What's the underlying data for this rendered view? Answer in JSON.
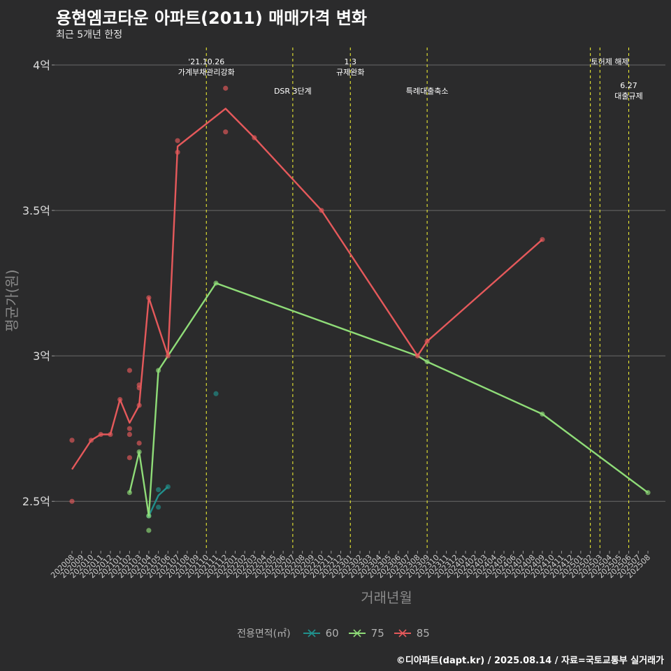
{
  "title": "용현엠코타운 아파트(2011) 매매가격 변화",
  "subtitle": "최근 5개년 한정",
  "credit": "©디아파트(dapt.kr) / 2025.08.14 / 자료=국토교통부 실거래가",
  "legend": {
    "title": "전용면적(㎡)",
    "items": [
      {
        "label": "60",
        "color": "#21908c"
      },
      {
        "label": "75",
        "color": "#8fdc78"
      },
      {
        "label": "85",
        "color": "#e5595b"
      }
    ]
  },
  "chart_data": {
    "type": "line",
    "xlabel": "거래년월",
    "ylabel": "평균가(원)",
    "categories": [
      "202008",
      "202009",
      "202010",
      "202011",
      "202012",
      "202101",
      "202102",
      "202103",
      "202104",
      "202105",
      "202106",
      "202107",
      "202108",
      "202109",
      "202110",
      "202111",
      "202112",
      "202201",
      "202202",
      "202203",
      "202204",
      "202205",
      "202206",
      "202207",
      "202208",
      "202209",
      "202210",
      "202211",
      "202212",
      "202301",
      "202302",
      "202303",
      "202304",
      "202305",
      "202306",
      "202307",
      "202308",
      "202309",
      "202310",
      "202311",
      "202312",
      "202401",
      "202402",
      "202403",
      "202404",
      "202405",
      "202406",
      "202407",
      "202408",
      "202409",
      "202410",
      "202411",
      "202412",
      "202501",
      "202502",
      "202503",
      "202504",
      "202505",
      "202506",
      "202507",
      "202508"
    ],
    "ylim": [
      23300,
      40600
    ],
    "yticks": [
      {
        "value": 25000,
        "label": "2.5억"
      },
      {
        "value": 30000,
        "label": "3억"
      },
      {
        "value": 35000,
        "label": "3.5억"
      },
      {
        "value": 40000,
        "label": "4억"
      }
    ],
    "series": [
      {
        "name": "60",
        "color": "#21908c",
        "line": [
          [
            "202104",
            24500
          ],
          [
            "202105",
            25200
          ],
          [
            "202106",
            25500
          ]
        ],
        "points": [
          [
            "202104",
            24500
          ],
          [
            "202105",
            25400
          ],
          [
            "202105",
            24800
          ],
          [
            "202106",
            25500
          ],
          [
            "202111",
            28700
          ]
        ]
      },
      {
        "name": "75",
        "color": "#8fdc78",
        "line": [
          [
            "202102",
            25300
          ],
          [
            "202103",
            26700
          ],
          [
            "202104",
            24500
          ],
          [
            "202105",
            29500
          ],
          [
            "202106",
            30000
          ],
          [
            "202111",
            32500
          ],
          [
            "202308",
            30000
          ],
          [
            "202309",
            29800
          ],
          [
            "202409",
            28000
          ],
          [
            "202508",
            25300
          ]
        ],
        "points": [
          [
            "202102",
            25300
          ],
          [
            "202103",
            26700
          ],
          [
            "202104",
            24000
          ],
          [
            "202104",
            24500
          ],
          [
            "202105",
            29500
          ],
          [
            "202111",
            32500
          ],
          [
            "202309",
            29800
          ],
          [
            "202409",
            28000
          ],
          [
            "202508",
            25300
          ]
        ]
      },
      {
        "name": "85",
        "color": "#e5595b",
        "line": [
          [
            "202008",
            26100
          ],
          [
            "202010",
            27100
          ],
          [
            "202011",
            27300
          ],
          [
            "202012",
            27300
          ],
          [
            "202101",
            28500
          ],
          [
            "202102",
            27700
          ],
          [
            "202103",
            28300
          ],
          [
            "202104",
            32000
          ],
          [
            "202106",
            30000
          ],
          [
            "202107",
            37200
          ],
          [
            "202112",
            38500
          ],
          [
            "202203",
            37500
          ],
          [
            "202210",
            35000
          ],
          [
            "202308",
            30000
          ],
          [
            "202309",
            30500
          ],
          [
            "202409",
            34000
          ]
        ],
        "points": [
          [
            "202008",
            25000
          ],
          [
            "202008",
            27100
          ],
          [
            "202010",
            27100
          ],
          [
            "202011",
            27300
          ],
          [
            "202012",
            27300
          ],
          [
            "202101",
            28500
          ],
          [
            "202102",
            29500
          ],
          [
            "202102",
            27500
          ],
          [
            "202102",
            27300
          ],
          [
            "202102",
            26500
          ],
          [
            "202103",
            28300
          ],
          [
            "202103",
            28900
          ],
          [
            "202103",
            29000
          ],
          [
            "202103",
            27000
          ],
          [
            "202104",
            32000
          ],
          [
            "202106",
            30000
          ],
          [
            "202107",
            37000
          ],
          [
            "202107",
            37400
          ],
          [
            "202112",
            39200
          ],
          [
            "202112",
            37700
          ],
          [
            "202203",
            37500
          ],
          [
            "202210",
            35000
          ],
          [
            "202308",
            30000
          ],
          [
            "202309",
            30500
          ],
          [
            "202409",
            34000
          ]
        ]
      }
    ],
    "events": [
      {
        "x": "202110",
        "lines": [
          "'21.10.26",
          "가계부채관리강화"
        ],
        "level": 0
      },
      {
        "x": "202207",
        "lines": [
          "DSR 3단계"
        ],
        "level": 1
      },
      {
        "x": "202301",
        "lines": [
          "1.3",
          "규제완화"
        ],
        "level": 0
      },
      {
        "x": "202309",
        "lines": [
          "특례대출축소"
        ],
        "level": 1
      },
      {
        "x": "202502",
        "lines": [
          "토허제 해제"
        ],
        "level": 0,
        "anchor": "end"
      },
      {
        "x": "202503",
        "lines": [],
        "level": 0
      },
      {
        "x": "202506",
        "lines": [
          "6.27",
          "대출규제"
        ],
        "level": 2
      }
    ]
  }
}
